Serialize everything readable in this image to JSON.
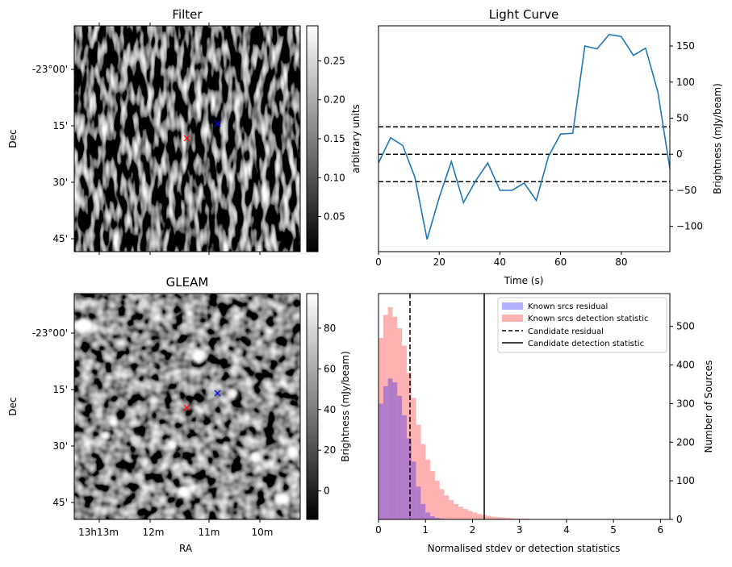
{
  "chart_data": [
    {
      "type": "heatmap",
      "title": "Filter",
      "xlabel": "",
      "ylabel": "Dec",
      "yticks": [
        "-23°00'",
        "15'",
        "30'",
        "45'"
      ],
      "colorbar": {
        "label": "arbitrary units",
        "ticks": [
          "0.05",
          "0.10",
          "0.15",
          "0.20",
          "0.25"
        ],
        "range": [
          0.005,
          0.295
        ]
      },
      "markers": [
        {
          "name": "red-x-marker",
          "color": "#ff0000"
        },
        {
          "name": "blue-x-marker",
          "color": "#0000ff"
        }
      ]
    },
    {
      "type": "line",
      "title": "Light Curve",
      "xlabel": "Time (s)",
      "ylabel": "Brightness (mJy/beam)",
      "xlim": [
        0,
        96
      ],
      "ylim": [
        -135,
        178
      ],
      "xticks": [
        0,
        20,
        40,
        60,
        80
      ],
      "yticks": [
        -100,
        -50,
        0,
        50,
        100,
        150
      ],
      "x": [
        0,
        4,
        8,
        12,
        16,
        20,
        24,
        28,
        32,
        36,
        40,
        44,
        48,
        52,
        56,
        60,
        64,
        68,
        72,
        76,
        80,
        84,
        88,
        92,
        96
      ],
      "values": [
        -12,
        23,
        12,
        -32,
        -118,
        -60,
        -10,
        -67,
        -37,
        -12,
        -50,
        -50,
        -40,
        -64,
        -3,
        28,
        29,
        150,
        146,
        166,
        163,
        137,
        147,
        87,
        -20
      ],
      "hlines": [
        38,
        0,
        -38
      ],
      "line_color": "#1f77b4"
    },
    {
      "type": "heatmap",
      "title": "GLEAM",
      "xlabel": "RA",
      "ylabel": "Dec",
      "xticks": [
        "13h13m",
        "12m",
        "11m",
        "10m"
      ],
      "yticks": [
        "-23°00'",
        "15'",
        "30'",
        "45'"
      ],
      "colorbar": {
        "label": "Brightness (mJy/beam)",
        "ticks": [
          "0",
          "20",
          "40",
          "60",
          "80"
        ],
        "range": [
          -14,
          97
        ]
      },
      "markers": [
        {
          "name": "red-x-marker",
          "color": "#ff0000"
        },
        {
          "name": "blue-x-marker",
          "color": "#0000ff"
        }
      ]
    },
    {
      "type": "bar",
      "title": "",
      "xlabel": "Normalised stdev or detection statistics",
      "ylabel": "Number of Sources",
      "xlim": [
        0,
        6.2
      ],
      "ylim": [
        0,
        585
      ],
      "xticks": [
        0,
        1,
        2,
        3,
        4,
        5,
        6
      ],
      "yticks": [
        0,
        100,
        200,
        300,
        400,
        500
      ],
      "bin_width": 0.1,
      "series": [
        {
          "name": "Known srcs residual",
          "color": "#0000ff",
          "alpha": 0.3,
          "values": [
            300,
            345,
            365,
            355,
            320,
            270,
            210,
            150,
            85,
            40,
            18,
            8,
            4,
            2,
            1,
            0,
            0,
            0,
            0,
            0,
            0,
            0,
            0,
            0,
            0,
            0,
            0,
            0,
            0,
            0,
            0,
            0,
            0,
            0,
            0,
            0,
            0,
            0,
            0,
            0,
            0,
            0,
            0,
            0,
            0,
            0,
            0,
            0,
            0,
            0,
            0,
            0,
            0,
            0,
            0,
            0,
            0,
            0,
            0,
            0,
            0,
            0
          ]
        },
        {
          "name": "Known srcs detection statistic",
          "color": "#ff0000",
          "alpha": 0.3,
          "values": [
            470,
            530,
            550,
            525,
            495,
            450,
            380,
            315,
            245,
            195,
            155,
            125,
            100,
            78,
            62,
            50,
            40,
            33,
            27,
            22,
            18,
            14,
            11,
            9,
            7,
            6,
            5,
            4,
            3,
            2,
            2,
            2,
            1,
            1,
            1,
            1,
            1,
            1,
            0,
            0,
            0,
            0,
            0,
            0,
            0,
            0,
            0,
            0,
            0,
            0,
            0,
            0,
            0,
            0,
            0,
            0,
            0,
            0,
            1,
            0,
            0,
            0
          ]
        }
      ],
      "vlines": [
        {
          "name": "Candidate residual",
          "x": 0.67,
          "style": "dashed"
        },
        {
          "name": "Candidate detection statistic",
          "x": 2.25,
          "style": "solid"
        }
      ],
      "legend_position": "top-right"
    }
  ]
}
